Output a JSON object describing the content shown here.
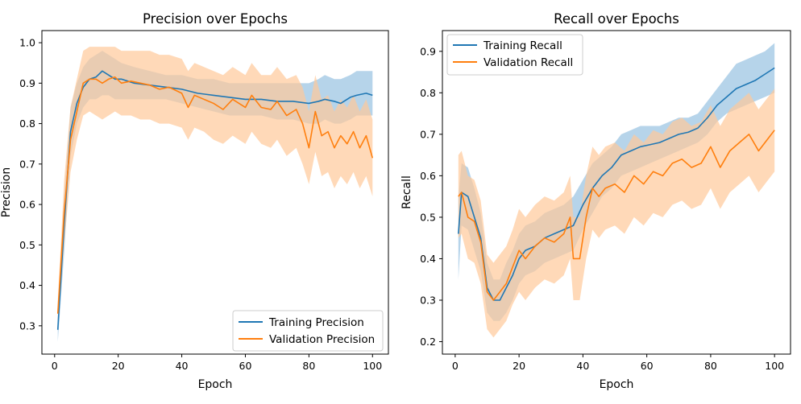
{
  "colors": {
    "training": "#1f77b4",
    "validation": "#ff7f0e",
    "training_band": "#a9cce6",
    "validation_band": "#ffc99a"
  },
  "chart_data": [
    {
      "type": "line",
      "title": "Precision over Epochs",
      "xlabel": "Epoch",
      "ylabel": "Precision",
      "xlim": [
        -4,
        105
      ],
      "ylim": [
        0.23,
        1.03
      ],
      "xticks": [
        0,
        20,
        40,
        60,
        80,
        100
      ],
      "xtick_labels": [
        "0",
        "20",
        "40",
        "60",
        "80",
        "100"
      ],
      "yticks": [
        0.3,
        0.4,
        0.5,
        0.6,
        0.7,
        0.8,
        0.9,
        1.0
      ],
      "ytick_labels": [
        "0.3",
        "0.4",
        "0.5",
        "0.6",
        "0.7",
        "0.8",
        "0.9",
        "1.0"
      ],
      "legend_position": "lower-right",
      "series": [
        {
          "name": "Training Precision",
          "color_key": "training",
          "x": [
            1,
            3,
            5,
            7,
            9,
            11,
            13,
            15,
            17,
            19,
            21,
            25,
            30,
            35,
            40,
            45,
            50,
            55,
            60,
            65,
            70,
            75,
            80,
            83,
            85,
            88,
            90,
            93,
            95,
            98,
            100
          ],
          "values": [
            0.29,
            0.55,
            0.78,
            0.85,
            0.89,
            0.91,
            0.915,
            0.93,
            0.92,
            0.91,
            0.91,
            0.9,
            0.895,
            0.89,
            0.885,
            0.875,
            0.87,
            0.865,
            0.86,
            0.86,
            0.855,
            0.855,
            0.85,
            0.855,
            0.86,
            0.855,
            0.85,
            0.865,
            0.87,
            0.875,
            0.87
          ],
          "band_lower": [
            0.26,
            0.48,
            0.72,
            0.8,
            0.84,
            0.86,
            0.86,
            0.87,
            0.87,
            0.86,
            0.86,
            0.86,
            0.86,
            0.86,
            0.85,
            0.84,
            0.83,
            0.82,
            0.82,
            0.82,
            0.81,
            0.81,
            0.8,
            0.8,
            0.81,
            0.8,
            0.8,
            0.81,
            0.82,
            0.82,
            0.82
          ],
          "band_upper": [
            0.32,
            0.62,
            0.84,
            0.9,
            0.94,
            0.96,
            0.97,
            0.98,
            0.97,
            0.96,
            0.95,
            0.94,
            0.93,
            0.92,
            0.92,
            0.91,
            0.91,
            0.9,
            0.9,
            0.9,
            0.9,
            0.9,
            0.9,
            0.91,
            0.92,
            0.91,
            0.91,
            0.92,
            0.93,
            0.93,
            0.93
          ]
        },
        {
          "name": "Validation Precision",
          "color_key": "validation",
          "x": [
            1,
            3,
            5,
            7,
            9,
            11,
            13,
            15,
            17,
            19,
            21,
            24,
            27,
            30,
            33,
            36,
            40,
            42,
            44,
            47,
            50,
            53,
            56,
            60,
            62,
            65,
            68,
            70,
            73,
            76,
            78,
            80,
            82,
            84,
            86,
            88,
            90,
            92,
            94,
            96,
            98,
            100
          ],
          "values": [
            0.33,
            0.58,
            0.76,
            0.83,
            0.9,
            0.91,
            0.91,
            0.9,
            0.91,
            0.915,
            0.9,
            0.905,
            0.9,
            0.895,
            0.885,
            0.89,
            0.875,
            0.84,
            0.87,
            0.86,
            0.85,
            0.835,
            0.86,
            0.84,
            0.87,
            0.84,
            0.835,
            0.855,
            0.82,
            0.835,
            0.8,
            0.74,
            0.83,
            0.77,
            0.78,
            0.74,
            0.77,
            0.75,
            0.78,
            0.74,
            0.77,
            0.715
          ],
          "band_lower": [
            0.3,
            0.5,
            0.68,
            0.76,
            0.82,
            0.83,
            0.82,
            0.81,
            0.82,
            0.83,
            0.82,
            0.82,
            0.81,
            0.81,
            0.8,
            0.8,
            0.79,
            0.76,
            0.79,
            0.78,
            0.76,
            0.75,
            0.77,
            0.75,
            0.78,
            0.75,
            0.74,
            0.76,
            0.72,
            0.74,
            0.7,
            0.65,
            0.73,
            0.67,
            0.68,
            0.64,
            0.67,
            0.65,
            0.68,
            0.64,
            0.67,
            0.62
          ],
          "band_upper": [
            0.36,
            0.66,
            0.84,
            0.91,
            0.98,
            0.99,
            0.99,
            0.99,
            0.99,
            0.99,
            0.98,
            0.98,
            0.98,
            0.98,
            0.97,
            0.97,
            0.96,
            0.93,
            0.95,
            0.94,
            0.93,
            0.92,
            0.94,
            0.92,
            0.95,
            0.92,
            0.92,
            0.94,
            0.91,
            0.92,
            0.89,
            0.83,
            0.92,
            0.86,
            0.87,
            0.83,
            0.86,
            0.84,
            0.87,
            0.83,
            0.86,
            0.81
          ]
        }
      ]
    },
    {
      "type": "line",
      "title": "Recall over Epochs",
      "xlabel": "Epoch",
      "ylabel": "Recall",
      "xlim": [
        -4,
        105
      ],
      "ylim": [
        0.17,
        0.95
      ],
      "xticks": [
        0,
        20,
        40,
        60,
        80,
        100
      ],
      "xtick_labels": [
        "0",
        "20",
        "40",
        "60",
        "80",
        "100"
      ],
      "yticks": [
        0.2,
        0.3,
        0.4,
        0.5,
        0.6,
        0.7,
        0.8,
        0.9
      ],
      "ytick_labels": [
        "0.2",
        "0.3",
        "0.4",
        "0.5",
        "0.6",
        "0.7",
        "0.8",
        "0.9"
      ],
      "legend_position": "upper-left",
      "series": [
        {
          "name": "Training Recall",
          "color_key": "training",
          "x": [
            1,
            2,
            4,
            6,
            8,
            10,
            12,
            14,
            16,
            18,
            20,
            22,
            25,
            28,
            31,
            34,
            37,
            40,
            43,
            46,
            49,
            52,
            55,
            58,
            61,
            64,
            67,
            70,
            73,
            76,
            79,
            82,
            85,
            88,
            91,
            94,
            97,
            100
          ],
          "values": [
            0.46,
            0.56,
            0.55,
            0.5,
            0.45,
            0.33,
            0.3,
            0.3,
            0.33,
            0.36,
            0.4,
            0.42,
            0.43,
            0.45,
            0.46,
            0.47,
            0.48,
            0.53,
            0.57,
            0.6,
            0.62,
            0.65,
            0.66,
            0.67,
            0.675,
            0.68,
            0.69,
            0.7,
            0.705,
            0.715,
            0.74,
            0.77,
            0.79,
            0.81,
            0.82,
            0.83,
            0.845,
            0.86
          ],
          "band_lower": [
            0.35,
            0.48,
            0.47,
            0.42,
            0.37,
            0.27,
            0.25,
            0.25,
            0.27,
            0.3,
            0.34,
            0.36,
            0.37,
            0.39,
            0.4,
            0.41,
            0.42,
            0.47,
            0.51,
            0.55,
            0.57,
            0.6,
            0.61,
            0.62,
            0.63,
            0.64,
            0.65,
            0.66,
            0.67,
            0.68,
            0.7,
            0.73,
            0.75,
            0.76,
            0.77,
            0.78,
            0.79,
            0.8
          ],
          "band_upper": [
            0.55,
            0.63,
            0.62,
            0.57,
            0.51,
            0.39,
            0.35,
            0.35,
            0.39,
            0.42,
            0.46,
            0.48,
            0.49,
            0.51,
            0.52,
            0.53,
            0.55,
            0.59,
            0.63,
            0.65,
            0.67,
            0.7,
            0.71,
            0.72,
            0.72,
            0.72,
            0.73,
            0.74,
            0.74,
            0.75,
            0.78,
            0.81,
            0.84,
            0.87,
            0.88,
            0.89,
            0.9,
            0.92
          ]
        },
        {
          "name": "Validation Recall",
          "color_key": "validation",
          "x": [
            1,
            2,
            4,
            6,
            8,
            10,
            12,
            14,
            16,
            18,
            20,
            22,
            25,
            28,
            31,
            34,
            36,
            37,
            39,
            41,
            43,
            45,
            47,
            50,
            53,
            56,
            59,
            62,
            65,
            68,
            71,
            74,
            77,
            80,
            83,
            86,
            89,
            92,
            95,
            98,
            100
          ],
          "values": [
            0.55,
            0.56,
            0.5,
            0.49,
            0.44,
            0.32,
            0.3,
            0.32,
            0.34,
            0.38,
            0.42,
            0.4,
            0.43,
            0.45,
            0.44,
            0.46,
            0.5,
            0.4,
            0.4,
            0.5,
            0.57,
            0.55,
            0.57,
            0.58,
            0.56,
            0.6,
            0.58,
            0.61,
            0.6,
            0.63,
            0.64,
            0.62,
            0.63,
            0.67,
            0.62,
            0.66,
            0.68,
            0.7,
            0.66,
            0.69,
            0.71
          ],
          "band_lower": [
            0.45,
            0.46,
            0.4,
            0.39,
            0.34,
            0.23,
            0.21,
            0.23,
            0.25,
            0.29,
            0.32,
            0.3,
            0.33,
            0.35,
            0.34,
            0.36,
            0.4,
            0.3,
            0.3,
            0.4,
            0.47,
            0.45,
            0.47,
            0.48,
            0.46,
            0.5,
            0.48,
            0.51,
            0.5,
            0.53,
            0.54,
            0.52,
            0.53,
            0.57,
            0.52,
            0.56,
            0.58,
            0.6,
            0.56,
            0.59,
            0.61
          ],
          "band_upper": [
            0.65,
            0.66,
            0.6,
            0.59,
            0.54,
            0.41,
            0.39,
            0.41,
            0.43,
            0.47,
            0.52,
            0.5,
            0.53,
            0.55,
            0.54,
            0.56,
            0.6,
            0.5,
            0.5,
            0.6,
            0.67,
            0.65,
            0.67,
            0.68,
            0.66,
            0.7,
            0.68,
            0.71,
            0.7,
            0.73,
            0.74,
            0.72,
            0.73,
            0.77,
            0.72,
            0.76,
            0.78,
            0.8,
            0.76,
            0.79,
            0.81
          ]
        }
      ]
    }
  ]
}
